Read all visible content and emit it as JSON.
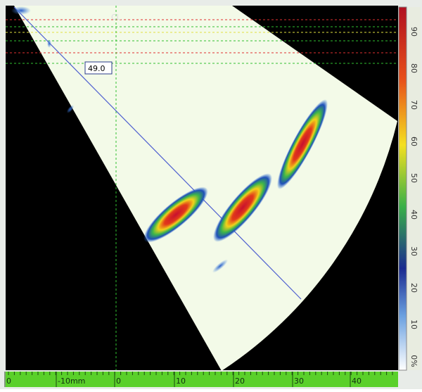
{
  "scan": {
    "centerline_label": "CL",
    "angle_readout": "49.0"
  },
  "ruler": {
    "labels": [
      "0",
      "-10mm",
      "0",
      "10",
      "20",
      "30",
      "40"
    ]
  },
  "color_scale": {
    "labels": [
      "90",
      "80",
      "70",
      "60",
      "50",
      "40",
      "30",
      "20",
      "10",
      "0%"
    ]
  }
}
